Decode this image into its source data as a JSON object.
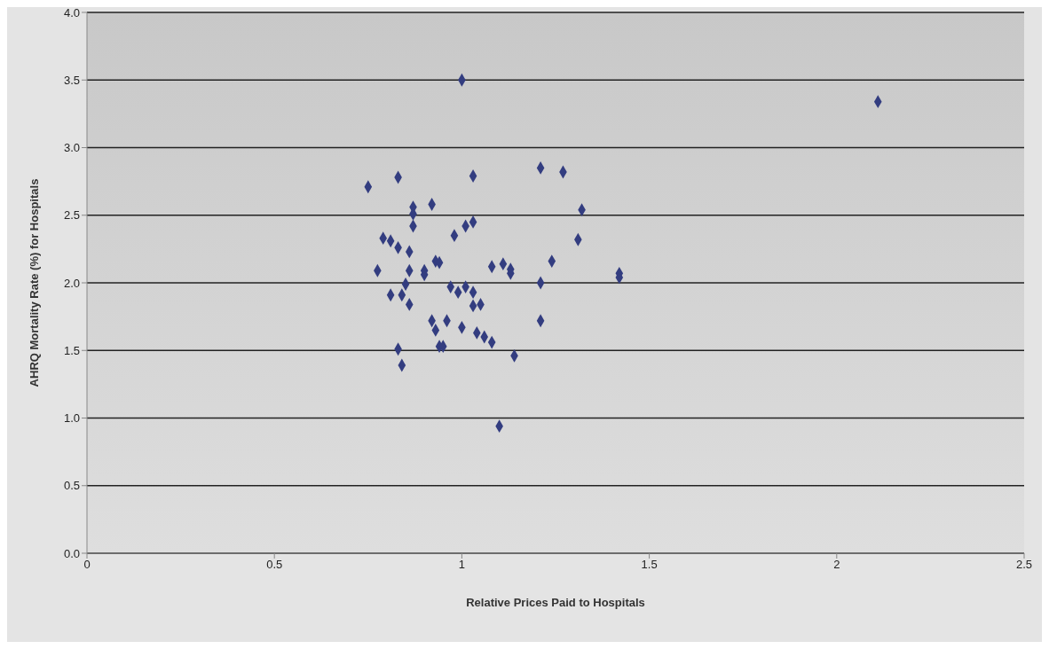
{
  "chart_data": {
    "type": "scatter",
    "xlabel": "Relative Prices Paid to Hospitals",
    "ylabel": "AHRQ Mortality Rate (%) for Hospitals",
    "xlim": [
      0,
      2.5
    ],
    "xticks": [
      0,
      0.5,
      1,
      1.5,
      2,
      2.5
    ],
    "ylim": [
      0,
      4
    ],
    "yticks": [
      {
        "value": 0,
        "label": "0.0"
      },
      {
        "value": 0.5,
        "label": "0.5"
      },
      {
        "value": 1,
        "label": "1.0"
      },
      {
        "value": 1.5,
        "label": "1.5"
      },
      {
        "value": 2,
        "label": "2.0"
      },
      {
        "value": 2.5,
        "label": "2.5"
      },
      {
        "value": 3,
        "label": "3.0"
      },
      {
        "value": 3.5,
        "label": "3.5"
      },
      {
        "value": 4,
        "label": "4.0"
      }
    ],
    "grid": "y",
    "marker": "diamond",
    "legend": false,
    "series": [
      {
        "color": "#333d80",
        "x": [
          0.75,
          1.0,
          2.11,
          0.775,
          0.83,
          1.03,
          0.87,
          0.92,
          0.87,
          0.87,
          0.98,
          1.01,
          1.03,
          0.79,
          0.81,
          0.83,
          0.86,
          0.93,
          0.94,
          1.08,
          0.86,
          0.9,
          0.9,
          0.85,
          0.81,
          0.84,
          0.97,
          0.99,
          1.01,
          1.03,
          0.86,
          1.03,
          1.05,
          0.92,
          0.96,
          0.93,
          1.0,
          1.04,
          1.06,
          1.08,
          0.83,
          0.94,
          0.95,
          0.84,
          1.21,
          1.27,
          1.32,
          1.31,
          1.24,
          1.11,
          1.13,
          1.13,
          1.21,
          1.42,
          1.42,
          1.21,
          1.14,
          1.1
        ],
        "values": [
          2.71,
          3.5,
          3.34,
          2.09,
          2.78,
          2.79,
          2.56,
          2.58,
          2.51,
          2.42,
          2.35,
          2.42,
          2.45,
          2.33,
          2.31,
          2.26,
          2.23,
          2.16,
          2.15,
          2.12,
          2.09,
          2.09,
          2.06,
          1.99,
          1.91,
          1.91,
          1.97,
          1.93,
          1.97,
          1.93,
          1.84,
          1.83,
          1.84,
          1.72,
          1.72,
          1.65,
          1.67,
          1.63,
          1.6,
          1.56,
          1.51,
          1.53,
          1.53,
          1.39,
          2.85,
          2.82,
          2.54,
          2.32,
          2.16,
          2.14,
          2.1,
          2.07,
          2.0,
          2.07,
          2.04,
          1.72,
          1.46,
          0.94
        ]
      }
    ]
  }
}
